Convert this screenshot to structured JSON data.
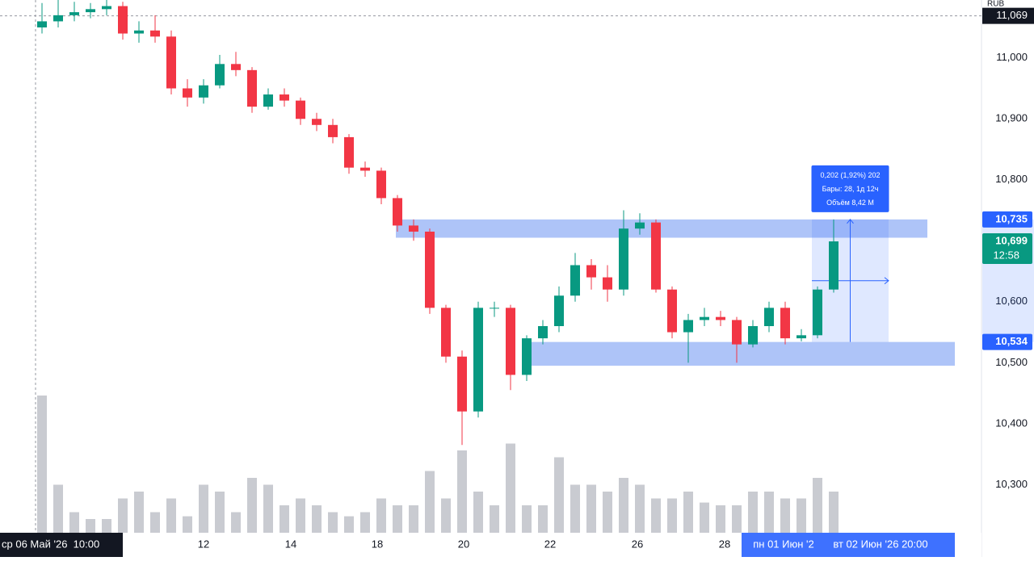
{
  "chart_data": {
    "type": "candlestick",
    "currency": "RUB",
    "x": [
      0,
      1,
      2,
      3,
      4,
      5,
      6,
      7,
      8,
      9,
      10,
      11,
      12,
      13,
      14,
      15,
      16,
      17,
      18,
      19,
      20,
      21,
      22,
      23,
      24,
      25,
      26,
      27,
      28,
      29,
      30,
      31,
      32,
      33,
      34,
      35,
      36,
      37,
      38,
      39,
      40,
      41,
      42,
      43,
      44,
      45,
      46,
      47,
      48,
      49
    ],
    "open": [
      11050,
      11060,
      11070,
      11075,
      11080,
      11085,
      11040,
      11045,
      11035,
      10950,
      10935,
      10955,
      10990,
      10980,
      10920,
      10940,
      10930,
      10900,
      10890,
      10870,
      10820,
      10815,
      10770,
      10725,
      10715,
      10590,
      10510,
      10420,
      10590,
      10590,
      10480,
      10540,
      10560,
      10610,
      10660,
      10640,
      10620,
      10720,
      10730,
      10620,
      10550,
      10570,
      10575,
      10570,
      10530,
      10560,
      10590,
      10540,
      10545,
      10620
    ],
    "high": [
      11090,
      11095,
      11092,
      11090,
      11095,
      11092,
      11060,
      11070,
      11045,
      10965,
      10965,
      11005,
      11010,
      10985,
      10950,
      10950,
      10935,
      10910,
      10900,
      10875,
      10830,
      10820,
      10775,
      10735,
      10720,
      10595,
      10520,
      10600,
      10600,
      10595,
      10545,
      10570,
      10625,
      10680,
      10670,
      10660,
      10750,
      10745,
      10735,
      10625,
      10580,
      10590,
      10585,
      10575,
      10570,
      10600,
      10600,
      10555,
      10625,
      10735
    ],
    "low": [
      11040,
      11050,
      11060,
      11065,
      11070,
      11030,
      11025,
      11025,
      10940,
      10920,
      10925,
      10950,
      10970,
      10910,
      10915,
      10920,
      10890,
      10880,
      10860,
      10810,
      10805,
      10760,
      10715,
      10700,
      10580,
      10500,
      10365,
      10410,
      10575,
      10455,
      10470,
      10530,
      10550,
      10600,
      10620,
      10600,
      10610,
      10710,
      10615,
      10540,
      10500,
      10560,
      10560,
      10500,
      10525,
      10550,
      10530,
      10535,
      10540,
      10615
    ],
    "close": [
      11060,
      11070,
      11075,
      11080,
      11085,
      11040,
      11045,
      11035,
      10950,
      10935,
      10955,
      10990,
      10980,
      10920,
      10940,
      10930,
      10900,
      10890,
      10870,
      10820,
      10815,
      10770,
      10725,
      10715,
      10590,
      10510,
      10420,
      10590,
      10590,
      10480,
      10540,
      10560,
      10610,
      10660,
      10640,
      10620,
      10720,
      10730,
      10620,
      10550,
      10570,
      10575,
      10570,
      10530,
      10560,
      10590,
      10540,
      10545,
      10620,
      10699
    ],
    "up_color": "#089981",
    "down_color": "#f23645",
    "volume": {
      "values": [
        100,
        35,
        15,
        10,
        10,
        25,
        30,
        15,
        25,
        12,
        35,
        30,
        15,
        40,
        35,
        20,
        25,
        20,
        15,
        12,
        15,
        25,
        20,
        20,
        45,
        25,
        60,
        30,
        20,
        65,
        20,
        20,
        55,
        35,
        35,
        30,
        40,
        35,
        25,
        25,
        30,
        22,
        20,
        20,
        30,
        30,
        25,
        25,
        40,
        30
      ],
      "ylim": [
        0,
        100
      ],
      "color": "#b2b5be"
    },
    "xlim": [
      -2.6,
      58.15
    ],
    "ylim": [
      10221,
      11095
    ],
    "grid": false,
    "xticks": [
      {
        "value": 10,
        "label": "12"
      },
      {
        "value": 15.4,
        "label": "14"
      },
      {
        "value": 20.75,
        "label": "18"
      },
      {
        "value": 26.1,
        "label": "20"
      },
      {
        "value": 31.45,
        "label": "22"
      },
      {
        "value": 36.85,
        "label": "26"
      },
      {
        "value": 42.25,
        "label": "28"
      }
    ],
    "yticks": [
      {
        "value": 11000,
        "label": "11,000"
      },
      {
        "value": 10900,
        "label": "10,900"
      },
      {
        "value": 10800,
        "label": "10,800"
      },
      {
        "value": 10600,
        "label": "10,600"
      },
      {
        "value": 10500,
        "label": "10,500"
      },
      {
        "value": 10400,
        "label": "10,400"
      },
      {
        "value": 10300,
        "label": "10,300"
      }
    ],
    "zones": [
      {
        "x": [
          21.9,
          54.8
        ],
        "y": [
          10705,
          10735
        ],
        "color": "#4c7df0"
      },
      {
        "x": [
          30.15,
          56.5
        ],
        "y": [
          10495,
          10534
        ],
        "color": "#4c7df0"
      }
    ],
    "measure": {
      "x": [
        47.65,
        52.4
      ],
      "y": [
        10534,
        10735
      ],
      "color": "#2962ff",
      "lines": [
        "0,202 (1,92%) 202",
        "Бары: 28, 1д 12ч",
        "Объём 8,42 M"
      ]
    },
    "price_labels": [
      {
        "value": 10735,
        "label": "10,735",
        "color": "#2962ff"
      },
      {
        "value": 10699,
        "label": "10,699",
        "sub": "12:58",
        "color": "#089981"
      },
      {
        "value": 10534,
        "label": "10,534",
        "color": "#2962ff"
      }
    ],
    "crosshair": {
      "x": -0.4,
      "y": {
        "value": 11069,
        "label": "11,069"
      },
      "time_label": "ср 06 Май '26  10:00"
    },
    "range_labels": [
      {
        "value": 45.9,
        "label": "пн 01 Июн '2"
      },
      {
        "value": 51.9,
        "label": "вт 02 Июн '26  20:00"
      }
    ]
  }
}
